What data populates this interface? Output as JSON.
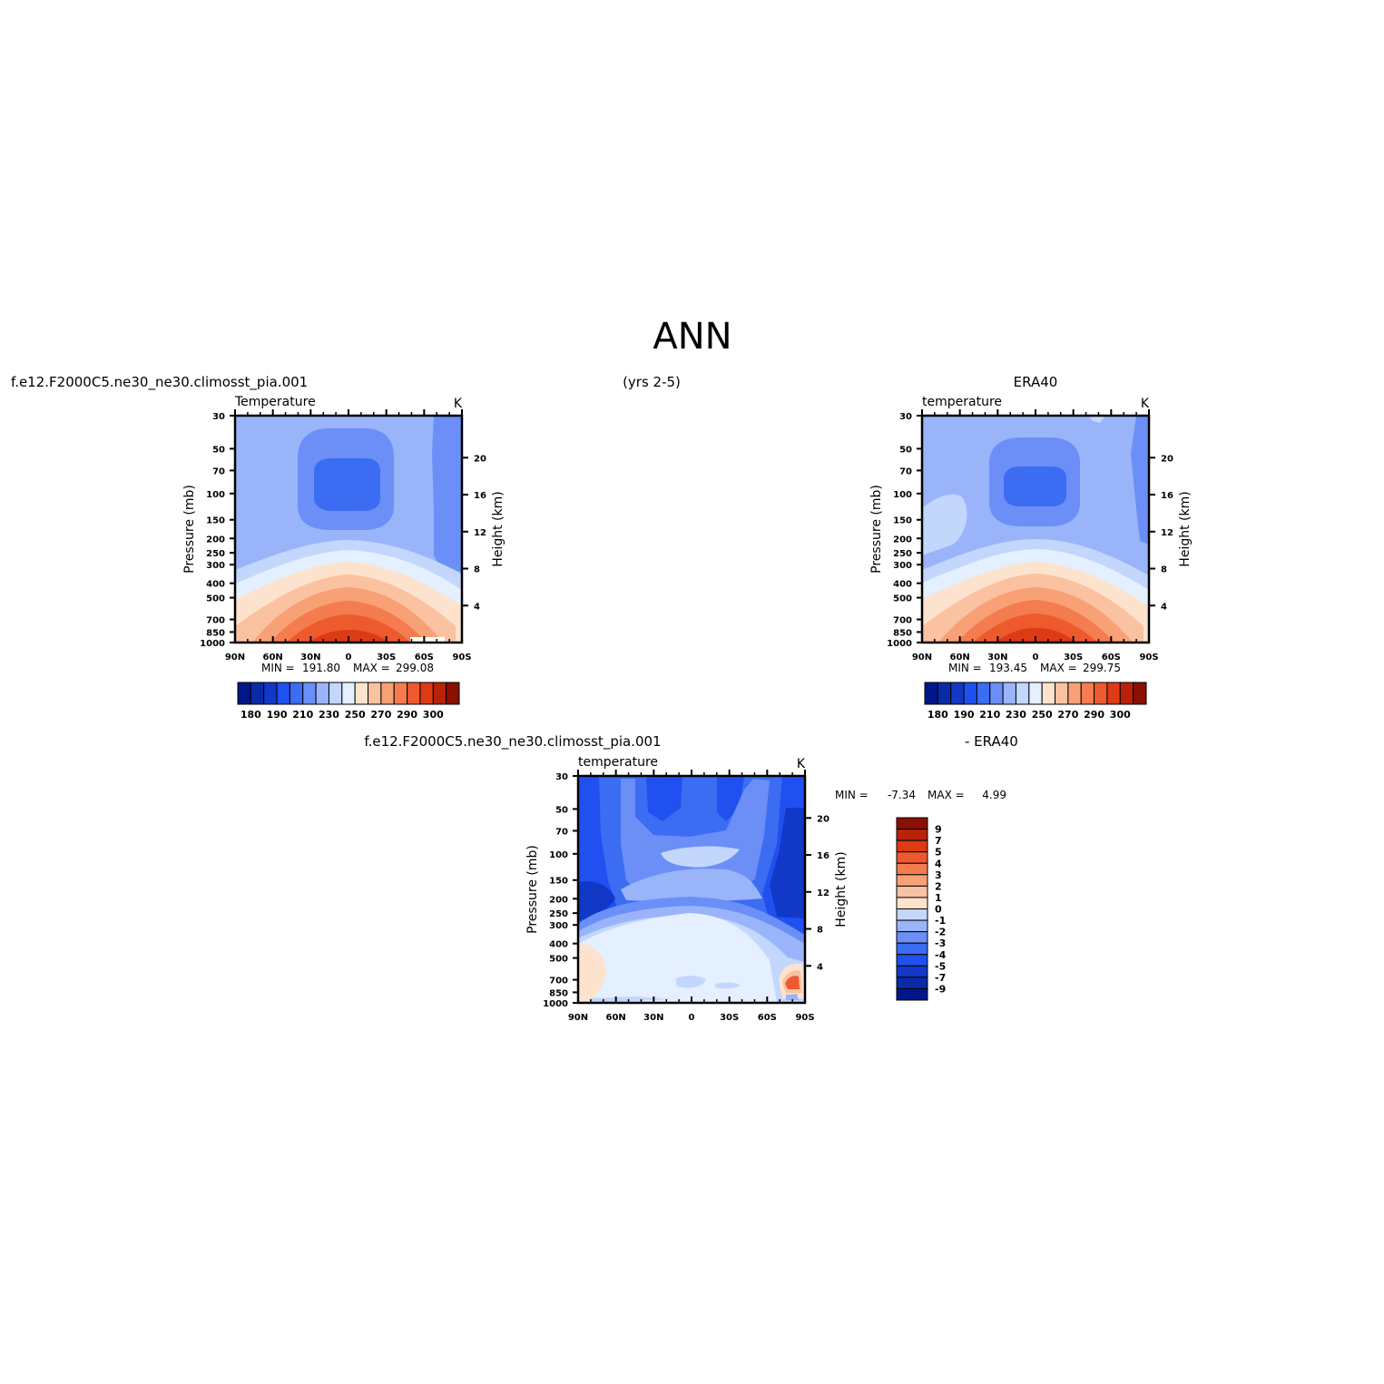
{
  "page": {
    "title": "ANN",
    "top_left_case": "f.e12.F2000C5.ne30_ne30.climosst_pia.001",
    "top_years": "(yrs 2-5)",
    "top_right_case": "ERA40",
    "diff_case_label": "f.e12.F2000C5.ne30_ne30.climosst_pia.001",
    "diff_ref_label": "- ERA40"
  },
  "colors": {
    "temp_levels": [
      "#00178a",
      "#0a2aa8",
      "#1238c8",
      "#2050f0",
      "#3b6cf2",
      "#6b8ff7",
      "#9ab4fa",
      "#c3d6fc",
      "#e4efff",
      "#fde3cd",
      "#fbc2a2",
      "#f8a076",
      "#f47c4f",
      "#ed5a2e",
      "#dc3b14",
      "#b82208",
      "#8a1002"
    ],
    "diff_levels": [
      "#00178a",
      "#0a2aa8",
      "#1238c8",
      "#2050f0",
      "#3b6cf2",
      "#6b8ff7",
      "#9ab4fa",
      "#c3d6fc",
      "#e4efff",
      "#fde3cd",
      "#fbc2a2",
      "#f8a076",
      "#f47c4f",
      "#ed5a2e",
      "#dc3b14",
      "#b82208",
      "#8a1002"
    ]
  },
  "chart_data": [
    {
      "type": "heatmap",
      "id": "model",
      "title": "Temperature",
      "units": "K",
      "ylabel": "Pressure (mb)",
      "y2label": "Height (km)",
      "x_tick_labels": [
        "90N",
        "60N",
        "30N",
        "0",
        "30S",
        "60S",
        "90S"
      ],
      "y_tick_labels": [
        "30",
        "50",
        "70",
        "100",
        "150",
        "200",
        "250",
        "300",
        "400",
        "500",
        "700",
        "850",
        "1000"
      ],
      "y2_tick_labels": [
        "4",
        "8",
        "12",
        "16",
        "20"
      ],
      "min": 191.8,
      "max": 299.08,
      "stats_text": {
        "min_label": "MIN =",
        "min_value": "191.80",
        "max_label": "MAX =",
        "max_value": "299.08"
      },
      "colorbar_labels": [
        "180",
        "190",
        "210",
        "230",
        "250",
        "270",
        "290",
        "300"
      ],
      "colorbar_bins": 17
    },
    {
      "type": "heatmap",
      "id": "obs",
      "title": "temperature",
      "units": "K",
      "ylabel": "Pressure (mb)",
      "y2label": "Height (km)",
      "x_tick_labels": [
        "90N",
        "60N",
        "30N",
        "0",
        "30S",
        "60S",
        "90S"
      ],
      "y_tick_labels": [
        "30",
        "50",
        "70",
        "100",
        "150",
        "200",
        "250",
        "300",
        "400",
        "500",
        "700",
        "850",
        "1000"
      ],
      "y2_tick_labels": [
        "4",
        "8",
        "12",
        "16",
        "20"
      ],
      "min": 193.45,
      "max": 299.75,
      "stats_text": {
        "min_label": "MIN =",
        "min_value": "193.45",
        "max_label": "MAX =",
        "max_value": "299.75"
      },
      "colorbar_labels": [
        "180",
        "190",
        "210",
        "230",
        "250",
        "270",
        "290",
        "300"
      ],
      "colorbar_bins": 17
    },
    {
      "type": "heatmap",
      "id": "diff",
      "title": "temperature",
      "units": "K",
      "ylabel": "Pressure (mb)",
      "y2label": "Height (km)",
      "x_tick_labels": [
        "90N",
        "60N",
        "30N",
        "0",
        "30S",
        "60S",
        "90S"
      ],
      "y_tick_labels": [
        "30",
        "50",
        "70",
        "100",
        "150",
        "200",
        "250",
        "300",
        "400",
        "500",
        "700",
        "850",
        "1000"
      ],
      "y2_tick_labels": [
        "4",
        "8",
        "12",
        "16",
        "20"
      ],
      "min": -7.34,
      "max": 4.99,
      "stats_text": {
        "min_label": "MIN =",
        "min_value": "-7.34",
        "max_label": "MAX =",
        "max_value": "4.99"
      },
      "colorbar_labels": [
        "9",
        "7",
        "5",
        "4",
        "3",
        "2",
        "1",
        "0",
        "-1",
        "-2",
        "-3",
        "-4",
        "-5",
        "-7",
        "-9"
      ],
      "colorbar_bins": 16
    }
  ]
}
